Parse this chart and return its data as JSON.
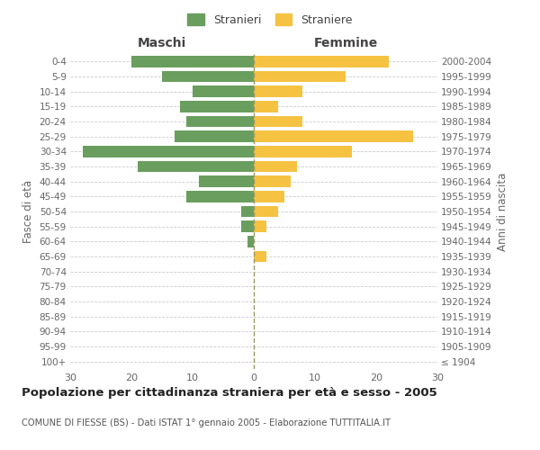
{
  "age_groups": [
    "100+",
    "95-99",
    "90-94",
    "85-89",
    "80-84",
    "75-79",
    "70-74",
    "65-69",
    "60-64",
    "55-59",
    "50-54",
    "45-49",
    "40-44",
    "35-39",
    "30-34",
    "25-29",
    "20-24",
    "15-19",
    "10-14",
    "5-9",
    "0-4"
  ],
  "birth_years": [
    "≤ 1904",
    "1905-1909",
    "1910-1914",
    "1915-1919",
    "1920-1924",
    "1925-1929",
    "1930-1934",
    "1935-1939",
    "1940-1944",
    "1945-1949",
    "1950-1954",
    "1955-1959",
    "1960-1964",
    "1965-1969",
    "1970-1974",
    "1975-1979",
    "1980-1984",
    "1985-1989",
    "1990-1994",
    "1995-1999",
    "2000-2004"
  ],
  "males": [
    0,
    0,
    0,
    0,
    0,
    0,
    0,
    0,
    1,
    2,
    2,
    11,
    9,
    19,
    28,
    13,
    11,
    12,
    10,
    15,
    20
  ],
  "females": [
    0,
    0,
    0,
    0,
    0,
    0,
    0,
    2,
    0,
    2,
    4,
    5,
    6,
    7,
    16,
    26,
    8,
    4,
    8,
    15,
    22
  ],
  "male_color": "#6a9e5e",
  "female_color": "#f5c242",
  "male_label": "Stranieri",
  "female_label": "Straniere",
  "maschi_label": "Maschi",
  "femmine_label": "Femmine",
  "fasce_label": "Fasce di età",
  "anni_label": "Anni di nascita",
  "title": "Popolazione per cittadinanza straniera per età e sesso - 2005",
  "subtitle": "COMUNE DI FIESSE (BS) - Dati ISTAT 1° gennaio 2005 - Elaborazione TUTTITALIA.IT",
  "xlim": 30,
  "background_color": "#ffffff",
  "grid_color": "#cccccc"
}
